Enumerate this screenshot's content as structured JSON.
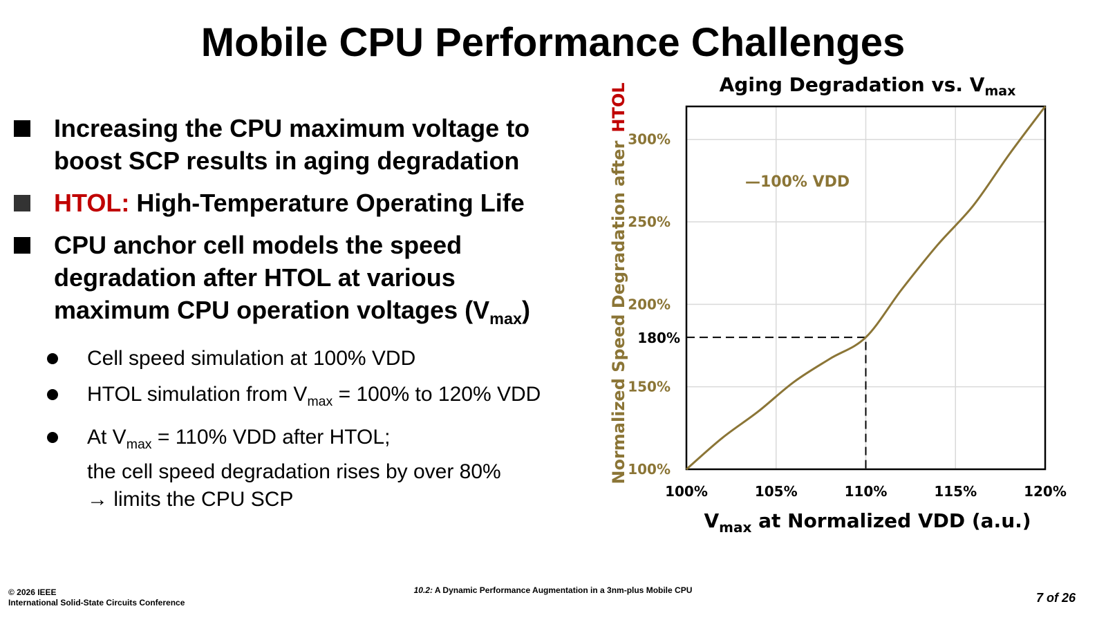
{
  "slide": {
    "title": "Mobile CPU Performance Challenges",
    "bullets": {
      "b1_line1": "Increasing the CPU maximum voltage to",
      "b1_line2": "boost SCP results in aging degradation",
      "b2_label": "HTOL:",
      "b2_text": " High-Temperature Operating Life",
      "b3_line1": "CPU anchor cell models the speed",
      "b3_line2": "degradation after HTOL at various",
      "b3_line3": "maximum CPU operation voltages (V",
      "b3_sub": "max",
      "b3_close": ")"
    },
    "subbullets": {
      "s1": "Cell speed simulation at 100% VDD",
      "s2_pre": "HTOL simulation from V",
      "s2_sub": "max",
      "s2_post": " = 100% to 120% VDD",
      "s3_pre": "At V",
      "s3_sub": "max",
      "s3_post": " = 110% VDD after HTOL;",
      "s3_line2": "the cell speed degradation rises by over 80%",
      "s3_line3": "→ limits the CPU SCP"
    }
  },
  "chart_data": {
    "type": "line",
    "title": "Aging Degradation vs. V",
    "title_sub": "max",
    "xlabel": "V",
    "xlabel_sub": "max",
    "xlabel_rest": " at Normalized VDD (a.u.)",
    "ylabel": "Normalized Speed Degradation after",
    "ylabel_highlight": "HTOL",
    "xlim": [
      100,
      120
    ],
    "ylim": [
      100,
      320
    ],
    "x_ticks": [
      100,
      105,
      110,
      115,
      120
    ],
    "x_tick_labels": [
      "100%",
      "105%",
      "110%",
      "115%",
      "120%"
    ],
    "y_ticks": [
      100,
      150,
      200,
      250,
      300
    ],
    "y_tick_labels": [
      "100%",
      "150%",
      "200%",
      "250%",
      "300%"
    ],
    "annotation_value": 180,
    "annotation_label": "180%",
    "annotation_x": 110,
    "series": [
      {
        "name": "100% VDD",
        "legend_label": "—100% VDD",
        "color": "#8b7536",
        "x": [
          100,
          102,
          104,
          106,
          108,
          110,
          112,
          114,
          116,
          118,
          120
        ],
        "y": [
          100,
          119,
          135,
          153,
          167,
          180,
          209,
          236,
          260,
          291,
          320
        ]
      }
    ]
  },
  "footer": {
    "copyright": "© 2026 IEEE",
    "conference": "International Solid-State Circuits Conference",
    "paper_number": "10.2:",
    "paper_title": " A Dynamic Performance Augmentation in a 3nm-plus Mobile CPU",
    "page": "7 of 26"
  }
}
